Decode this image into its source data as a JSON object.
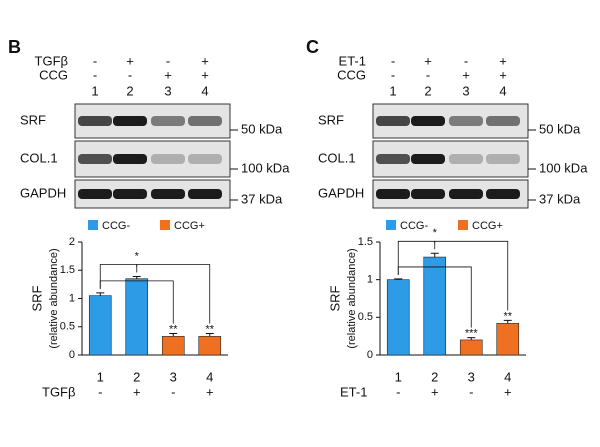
{
  "panels": [
    {
      "label": "B",
      "treatment": "TGFβ",
      "treatment_row": [
        "-",
        "+",
        "-",
        "+"
      ],
      "ccg": "CCG",
      "ccg_row": [
        "-",
        "-",
        "+",
        "+"
      ],
      "lanes": [
        "1",
        "2",
        "3",
        "4"
      ],
      "blots": [
        {
          "name": "SRF",
          "marker": "50 kDa"
        },
        {
          "name": "COL.1",
          "marker": "100 kDa"
        },
        {
          "name": "GAPDH",
          "marker": "37 kDa"
        }
      ]
    },
    {
      "label": "C",
      "treatment": "ET-1",
      "treatment_row": [
        "-",
        "+",
        "-",
        "+"
      ],
      "ccg": "CCG",
      "ccg_row": [
        "-",
        "-",
        "+",
        "+"
      ],
      "lanes": [
        "1",
        "2",
        "3",
        "4"
      ],
      "blots": [
        {
          "name": "SRF",
          "marker": "50 kDa"
        },
        {
          "name": "COL.1",
          "marker": "100 kDa"
        },
        {
          "name": "GAPDH",
          "marker": "37 kDa"
        }
      ]
    }
  ],
  "chart_data": [
    {
      "type": "bar",
      "y_label": "SRF",
      "y_sublabel": "(relative abundance)",
      "x_label": "TGFβ",
      "categories": [
        "1",
        "2",
        "3",
        "4"
      ],
      "x_signs": [
        "-",
        "+",
        "-",
        "+"
      ],
      "series": [
        {
          "name": "CCG-",
          "color": "#2e9be6",
          "values": [
            1.05,
            1.35,
            null,
            null
          ],
          "errors": [
            0.05,
            0.04,
            null,
            null
          ]
        },
        {
          "name": "CCG+",
          "color": "#f07022",
          "values": [
            null,
            null,
            0.33,
            0.33
          ],
          "errors": [
            null,
            null,
            0.05,
            0.05
          ]
        }
      ],
      "significance": [
        null,
        "*",
        "**",
        "**"
      ],
      "ylim": [
        0,
        2
      ],
      "yticks": [
        0,
        0.5,
        1,
        1.5,
        2
      ]
    },
    {
      "type": "bar",
      "y_label": "SRF",
      "y_sublabel": "(relative abundance)",
      "x_label": "ET-1",
      "categories": [
        "1",
        "2",
        "3",
        "4"
      ],
      "x_signs": [
        "-",
        "+",
        "-",
        "+"
      ],
      "series": [
        {
          "name": "CCG-",
          "color": "#2e9be6",
          "values": [
            1.0,
            1.3,
            null,
            null
          ],
          "errors": [
            0.01,
            0.05,
            null,
            null
          ]
        },
        {
          "name": "CCG+",
          "color": "#f07022",
          "values": [
            null,
            null,
            0.2,
            0.42
          ],
          "errors": [
            null,
            null,
            0.03,
            0.04
          ]
        }
      ],
      "significance": [
        null,
        "*",
        "***",
        "**"
      ],
      "ylim": [
        0,
        1.5
      ],
      "yticks": [
        0,
        0.5,
        1,
        1.5
      ]
    }
  ]
}
